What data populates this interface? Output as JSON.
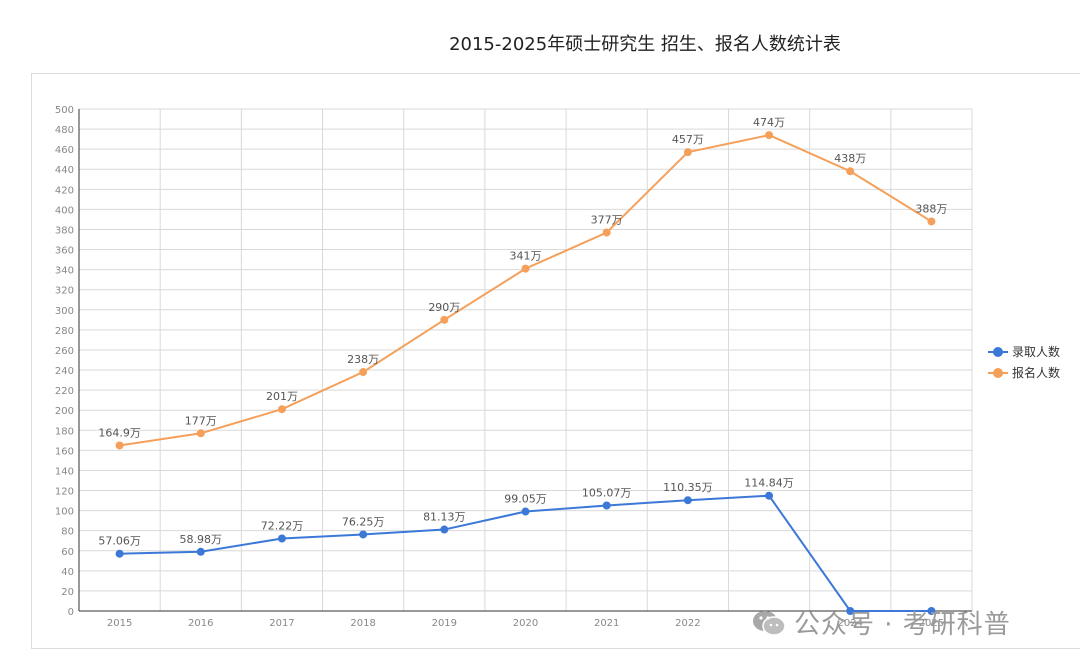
{
  "page": {
    "title": "2015-2025年硕士研究生 招生、报名人数统计表"
  },
  "colors": {
    "admitted": "#3b78d8",
    "applicants": "#f5a05a",
    "grid": "#d9d9d9",
    "axis": "#333333",
    "tick_text": "#888888",
    "label_text": "#555555"
  },
  "watermark": {
    "text": "公众号 · 考研科普",
    "icon": "wechat-icon"
  },
  "chart_data": {
    "type": "line",
    "title": "2015-2025年硕士研究生 招生、报名人数统计表",
    "x": [
      "2015",
      "2016",
      "2017",
      "2018",
      "2019",
      "2020",
      "2021",
      "2022",
      "2023",
      "2024",
      "2025"
    ],
    "xlabel": "",
    "ylabel": "",
    "ylim": [
      0,
      500
    ],
    "ytick_step": 20,
    "grid": true,
    "legend_position": "right",
    "series": [
      {
        "name": "录取人数",
        "color": "#3b78d8",
        "values": [
          57.06,
          58.98,
          72.22,
          76.25,
          81.13,
          99.05,
          105.07,
          110.35,
          114.84,
          0,
          0
        ],
        "labels": [
          "57.06万",
          "58.98万",
          "72.22万",
          "76.25万",
          "81.13万",
          "99.05万",
          "105.07万",
          "110.35万",
          "114.84万",
          "",
          ""
        ]
      },
      {
        "name": "报名人数",
        "color": "#f5a05a",
        "values": [
          164.9,
          177,
          201,
          238,
          290,
          341,
          377,
          457,
          474,
          438,
          388
        ],
        "labels": [
          "164.9万",
          "177万",
          "201万",
          "238万",
          "290万",
          "341万",
          "377万",
          "457万",
          "474万",
          "438万",
          "388万"
        ]
      }
    ]
  }
}
